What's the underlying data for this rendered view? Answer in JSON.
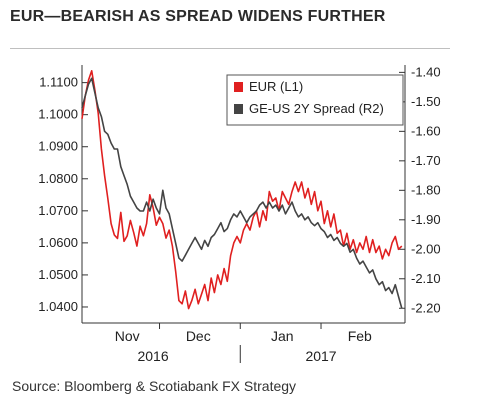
{
  "page_title": "EUR—BEARISH AS SPREAD WIDENS FURTHER",
  "source": "Source: Bloomberg & Scotiabank FX Strategy",
  "chart_data": {
    "type": "line",
    "title": "EUR—BEARISH AS SPREAD WIDENS FURTHER",
    "x_months": [
      "Nov",
      "Dec",
      "Jan",
      "Feb"
    ],
    "x_years": [
      "2016",
      "2017"
    ],
    "y_left": {
      "ticks": [
        "1.0400",
        "1.0500",
        "1.0600",
        "1.0700",
        "1.0800",
        "1.0900",
        "1.1000",
        "1.1100"
      ],
      "range": [
        1.035,
        1.1155
      ]
    },
    "y_right": {
      "ticks": [
        "-1.40",
        "-1.50",
        "-1.60",
        "-1.70",
        "-1.80",
        "-1.90",
        "-2.00",
        "-2.10",
        "-2.20"
      ],
      "range": [
        -2.25,
        -1.375
      ],
      "inverted": false
    },
    "x_range": [
      0,
      100
    ],
    "series": [
      {
        "name": "EUR (L1)",
        "axis": "left",
        "color": "#e02020",
        "x": [
          0,
          1,
          2,
          3,
          4,
          5,
          6,
          7,
          8,
          9,
          10,
          11,
          12,
          13,
          14,
          15,
          16,
          17,
          18,
          19,
          20,
          21,
          22,
          23,
          24,
          25,
          26,
          27,
          28,
          29,
          30,
          31,
          32,
          33,
          34,
          35,
          36,
          37,
          38,
          39,
          40,
          41,
          42,
          43,
          44,
          45,
          46,
          47,
          48,
          49,
          50,
          51,
          52,
          53,
          54,
          55,
          56,
          57,
          58,
          59,
          60,
          61,
          62,
          63,
          64,
          65,
          66,
          67,
          68,
          69,
          70,
          71,
          72,
          73,
          74,
          75,
          76,
          77,
          78,
          79,
          80,
          81,
          82,
          83,
          84,
          85,
          86,
          87,
          88,
          89,
          90,
          91,
          92,
          93,
          94,
          95,
          96,
          97,
          98,
          99
        ],
        "values": [
          1.0987,
          1.1058,
          1.1108,
          1.1137,
          1.1076,
          1.1005,
          1.0893,
          1.081,
          1.0739,
          1.066,
          1.0625,
          1.0614,
          1.0695,
          1.0605,
          1.0622,
          1.067,
          1.0632,
          1.059,
          1.0652,
          1.0622,
          1.066,
          1.075,
          1.071,
          1.0655,
          1.068,
          1.066,
          1.0615,
          1.064,
          1.059,
          1.051,
          1.042,
          1.041,
          1.045,
          1.0395,
          1.042,
          1.0455,
          1.041,
          1.044,
          1.047,
          1.042,
          1.049,
          1.0445,
          1.05,
          1.047,
          1.052,
          1.048,
          1.056,
          1.06,
          1.062,
          1.06,
          1.064,
          1.066,
          1.064,
          1.068,
          1.07,
          1.065,
          1.07,
          1.067,
          1.076,
          1.073,
          1.074,
          1.07,
          1.076,
          1.074,
          1.072,
          1.076,
          1.079,
          1.076,
          1.079,
          1.074,
          1.077,
          1.072,
          1.076,
          1.07,
          1.073,
          1.066,
          1.07,
          1.065,
          1.069,
          1.063,
          1.064,
          1.059,
          1.063,
          1.058,
          1.061,
          1.057,
          1.06,
          1.058,
          1.062,
          1.057,
          1.061,
          1.057,
          1.059,
          1.055,
          1.058,
          1.056,
          1.06,
          1.062,
          1.058,
          1.059
        ]
      },
      {
        "name": "GE-US 2Y Spread (R2)",
        "axis": "right",
        "color": "#444444",
        "x": [
          0,
          1,
          2,
          3,
          4,
          5,
          6,
          7,
          8,
          9,
          10,
          11,
          12,
          13,
          14,
          15,
          16,
          17,
          18,
          19,
          20,
          21,
          22,
          23,
          24,
          25,
          26,
          27,
          28,
          29,
          30,
          31,
          32,
          33,
          34,
          35,
          36,
          37,
          38,
          39,
          40,
          41,
          42,
          43,
          44,
          45,
          46,
          47,
          48,
          49,
          50,
          51,
          52,
          53,
          54,
          55,
          56,
          57,
          58,
          59,
          60,
          61,
          62,
          63,
          64,
          65,
          66,
          67,
          68,
          69,
          70,
          71,
          72,
          73,
          74,
          75,
          76,
          77,
          78,
          79,
          80,
          81,
          82,
          83,
          84,
          85,
          86,
          87,
          88,
          89,
          90,
          91,
          92,
          93,
          94,
          95,
          96,
          97,
          98,
          99
        ],
        "values": [
          -1.52,
          -1.48,
          -1.44,
          -1.42,
          -1.47,
          -1.52,
          -1.55,
          -1.6,
          -1.61,
          -1.64,
          -1.66,
          -1.66,
          -1.72,
          -1.75,
          -1.78,
          -1.82,
          -1.84,
          -1.86,
          -1.87,
          -1.87,
          -1.84,
          -1.87,
          -1.83,
          -1.86,
          -1.88,
          -1.8,
          -1.86,
          -1.88,
          -1.93,
          -1.98,
          -2.03,
          -2.04,
          -2.02,
          -2.0,
          -1.98,
          -1.96,
          -1.98,
          -2.0,
          -1.97,
          -1.99,
          -1.96,
          -1.95,
          -1.93,
          -1.91,
          -1.94,
          -1.93,
          -1.9,
          -1.88,
          -1.89,
          -1.87,
          -1.89,
          -1.91,
          -1.89,
          -1.88,
          -1.87,
          -1.85,
          -1.84,
          -1.86,
          -1.84,
          -1.86,
          -1.85,
          -1.87,
          -1.85,
          -1.88,
          -1.86,
          -1.84,
          -1.87,
          -1.89,
          -1.88,
          -1.9,
          -1.89,
          -1.91,
          -1.92,
          -1.91,
          -1.93,
          -1.94,
          -1.96,
          -1.95,
          -1.97,
          -1.96,
          -1.98,
          -1.99,
          -1.98,
          -2.01,
          -2.0,
          -2.03,
          -2.05,
          -2.04,
          -2.06,
          -2.08,
          -2.07,
          -2.1,
          -2.12,
          -2.11,
          -2.14,
          -2.13,
          -2.15,
          -2.12,
          -2.16,
          -2.2
        ]
      }
    ],
    "legend_position": "top-right",
    "grid": false
  }
}
